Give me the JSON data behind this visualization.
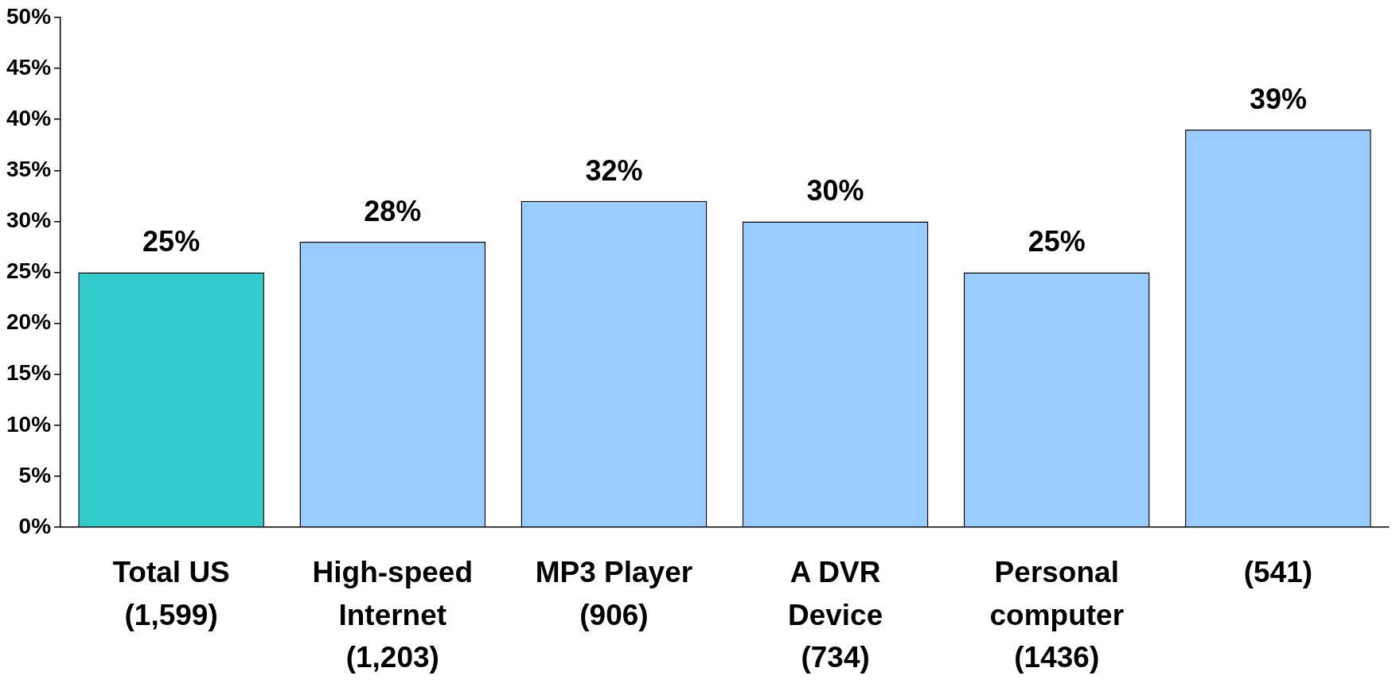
{
  "chart_data": {
    "type": "bar",
    "categories": [
      "Total US\n(1,599)",
      "High-speed\nInternet\n(1,203)",
      "MP3 Player\n(906)",
      "A DVR\nDevice\n(734)",
      "Personal\ncomputer\n(1436)",
      "(541)"
    ],
    "values": [
      25,
      28,
      32,
      30,
      25,
      39
    ],
    "colors": [
      "#33cccc",
      "#99ccff",
      "#99ccff",
      "#99ccff",
      "#99ccff",
      "#99ccff"
    ],
    "ylim": [
      0,
      50
    ],
    "yticks": [
      {
        "value": 0,
        "label": "0%"
      },
      {
        "value": 5,
        "label": "5%"
      },
      {
        "value": 10,
        "label": "10%"
      },
      {
        "value": 15,
        "label": "15%"
      },
      {
        "value": 20,
        "label": "20%"
      },
      {
        "value": 25,
        "label": "25%"
      },
      {
        "value": 30,
        "label": "30%"
      },
      {
        "value": 35,
        "label": "35%"
      },
      {
        "value": 40,
        "label": "40%"
      },
      {
        "value": 45,
        "label": "45%"
      },
      {
        "value": 50,
        "label": "50%"
      }
    ],
    "value_labels": [
      "25%",
      "28%",
      "32%",
      "30%",
      "25%",
      "39%"
    ],
    "grid": false,
    "legend": false
  }
}
